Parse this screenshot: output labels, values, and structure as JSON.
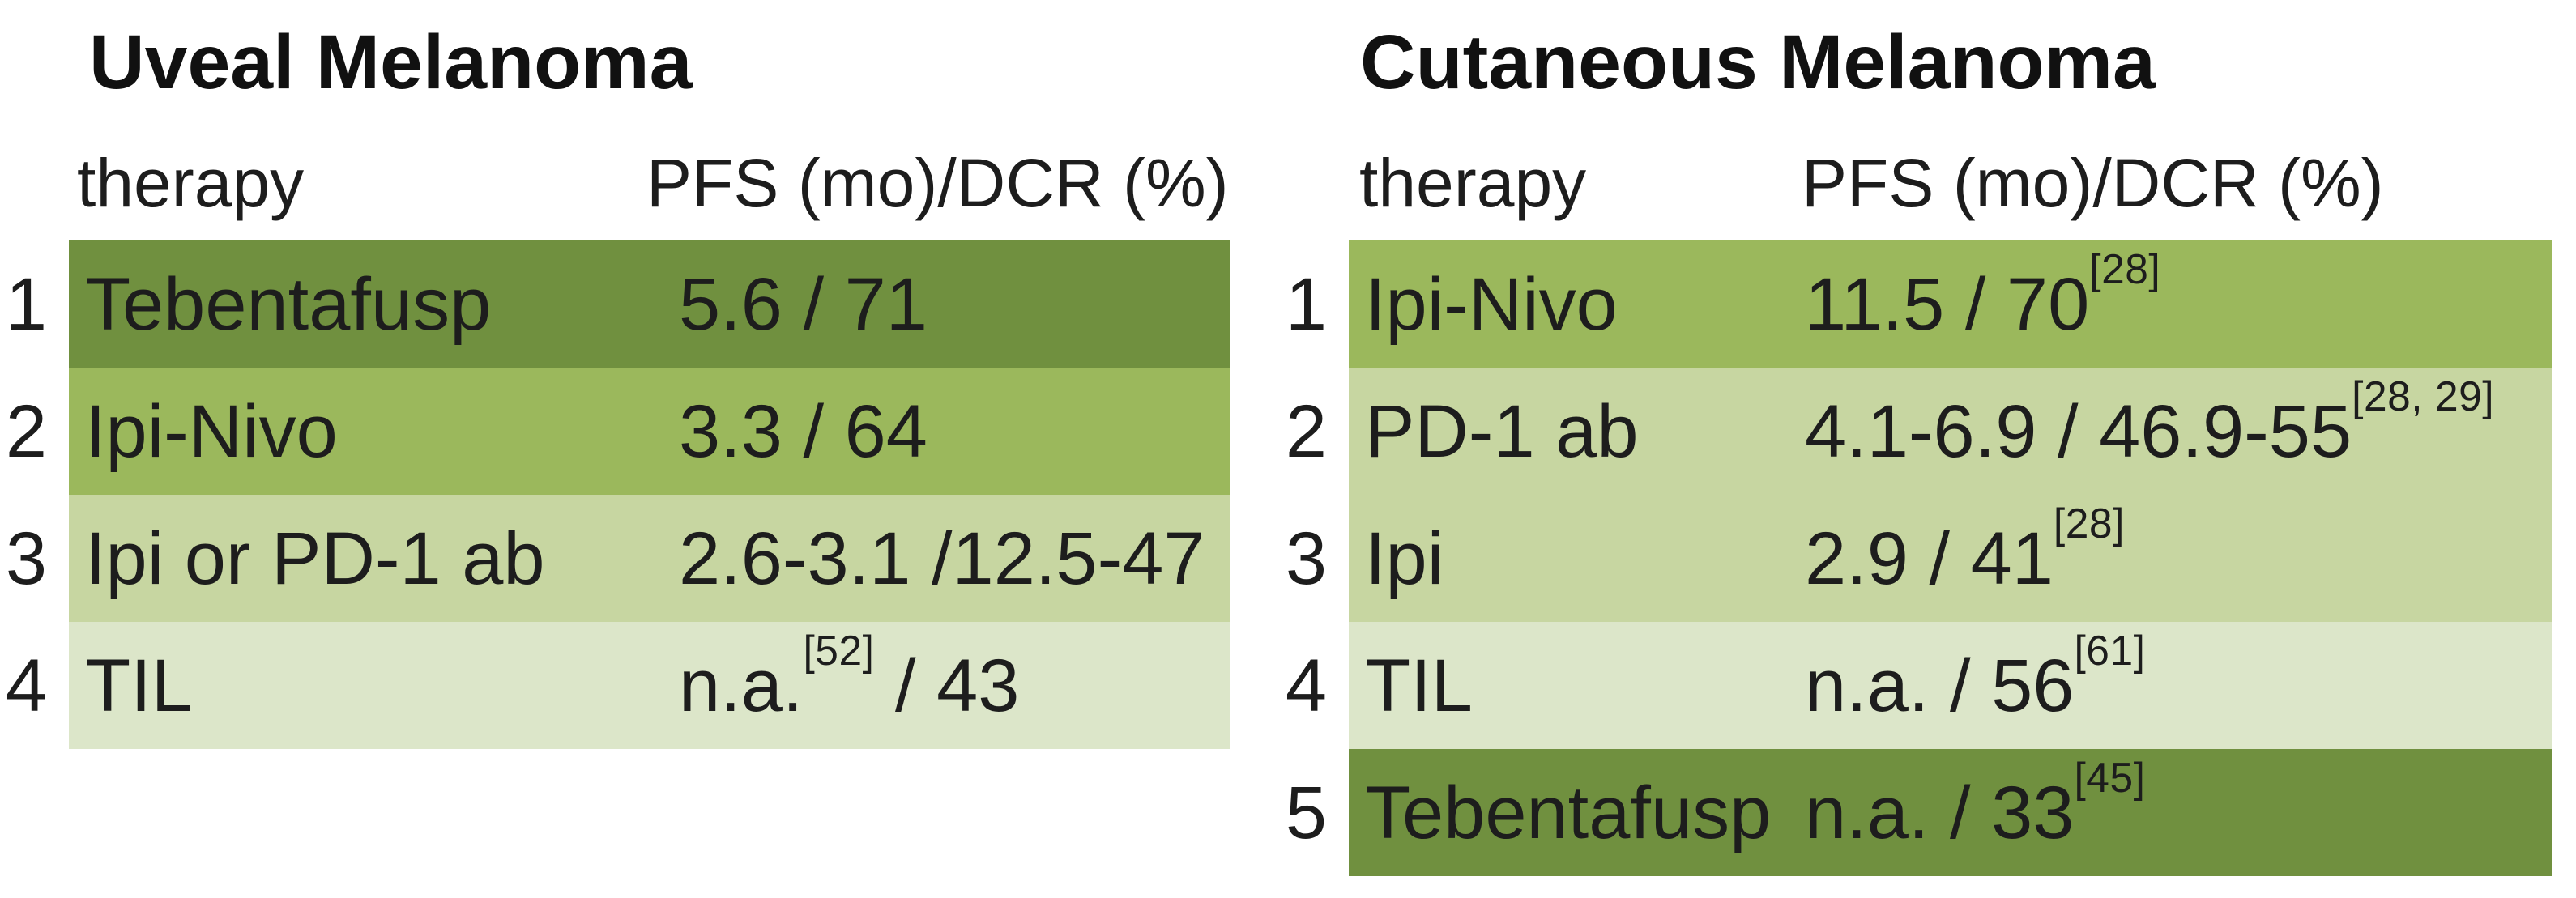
{
  "figure": {
    "description": "Ranking of therapies by PFS and DCR in uveal vs cutaneous melanoma"
  },
  "colors": {
    "dark": "#70903f",
    "medium": "#9bb85c",
    "light": "#c7d6a1",
    "lightest": "#dce6c9",
    "text": "#1d1d1d"
  },
  "tables": [
    {
      "title": "Uveal Melanoma",
      "header": {
        "therapy": "therapy",
        "value": "PFS (mo)/DCR (%)"
      },
      "rows": [
        {
          "rank": "1",
          "therapy": "Tebentafusp",
          "value_pre": "5.6 / 71",
          "sup": "",
          "value_post": "",
          "tone": "dark"
        },
        {
          "rank": "2",
          "therapy": "Ipi-Nivo",
          "value_pre": "3.3 / 64",
          "sup": "",
          "value_post": "",
          "tone": "medium"
        },
        {
          "rank": "3",
          "therapy": "Ipi or PD-1 ab",
          "value_pre": "2.6-3.1 /12.5-47",
          "sup": "",
          "value_post": "",
          "tone": "light"
        },
        {
          "rank": "4",
          "therapy": "TIL",
          "value_pre": "n.a.",
          "sup": "[52]",
          "value_post": " / 43",
          "tone": "lightest"
        }
      ]
    },
    {
      "title": "Cutaneous Melanoma",
      "header": {
        "therapy": "therapy",
        "value": "PFS (mo)/DCR (%)"
      },
      "rows": [
        {
          "rank": "1",
          "therapy": "Ipi-Nivo",
          "value_pre": "11.5 / 70",
          "sup": "[28]",
          "value_post": "",
          "tone": "medium"
        },
        {
          "rank": "2",
          "therapy": "PD-1 ab",
          "value_pre": "4.1-6.9 / 46.9-55",
          "sup": "[28, 29]",
          "value_post": "",
          "tone": "light"
        },
        {
          "rank": "3",
          "therapy": "Ipi",
          "value_pre": "2.9 / 41",
          "sup": "[28]",
          "value_post": "",
          "tone": "light"
        },
        {
          "rank": "4",
          "therapy": "TIL",
          "value_pre": "n.a. / 56",
          "sup": "[61]",
          "value_post": "",
          "tone": "lightest"
        },
        {
          "rank": "5",
          "therapy": "Tebentafusp",
          "value_pre": "n.a. / 33",
          "sup": "[45]",
          "value_post": "",
          "tone": "dark"
        }
      ]
    }
  ]
}
